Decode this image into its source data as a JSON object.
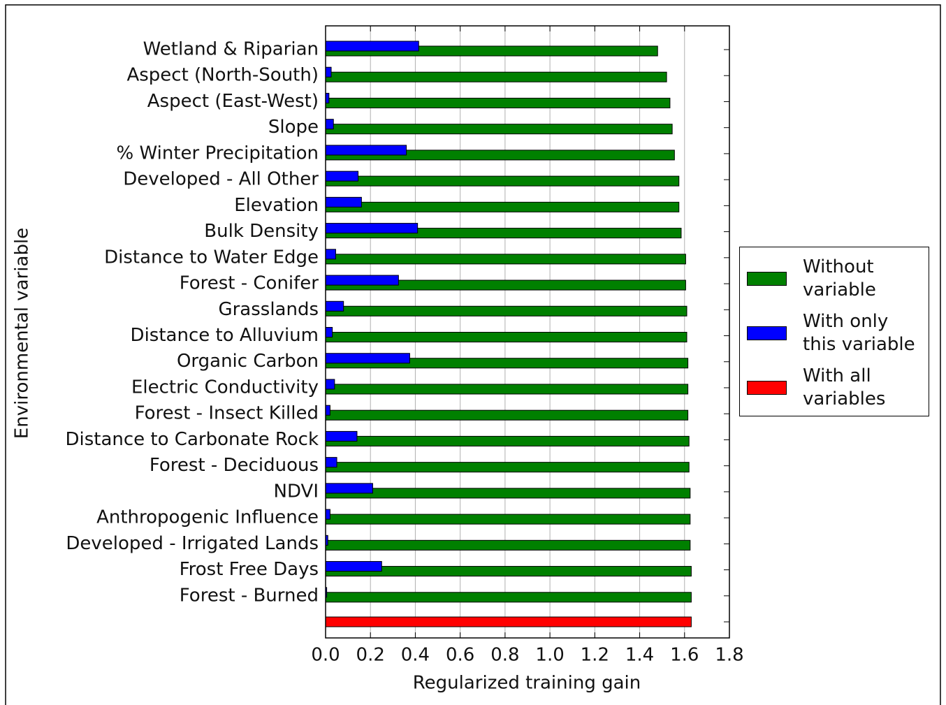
{
  "chart_data": {
    "type": "barh",
    "xlabel": "Regularized training gain",
    "ylabel": "Environmental variable",
    "categories": [
      "Wetland & Riparian",
      "Aspect (North-South)",
      "Aspect (East-West)",
      "Slope",
      "% Winter Precipitation",
      "Developed - All Other",
      "Elevation",
      "Bulk Density",
      "Distance to Water Edge",
      "Forest - Conifer",
      "Grasslands",
      "Distance to Alluvium",
      "Organic Carbon",
      "Electric Conductivity",
      "Forest - Insect Killed",
      "Distance to Carbonate Rock",
      "Forest - Deciduous",
      "NDVI",
      "Anthropogenic Influence",
      "Developed - Irrigated Lands",
      "Frost Free Days",
      "Forest - Burned",
      null
    ],
    "series": [
      {
        "name": "Without variable",
        "color": "#008000",
        "values": [
          1.48,
          1.52,
          1.535,
          1.545,
          1.555,
          1.575,
          1.575,
          1.585,
          1.605,
          1.605,
          1.61,
          1.61,
          1.615,
          1.615,
          1.615,
          1.62,
          1.62,
          1.625,
          1.625,
          1.625,
          1.63,
          1.63,
          null
        ]
      },
      {
        "name": "With only this variable",
        "color": "#0000ff",
        "values": [
          0.415,
          0.025,
          0.015,
          0.035,
          0.36,
          0.145,
          0.16,
          0.41,
          0.045,
          0.325,
          0.08,
          0.03,
          0.375,
          0.04,
          0.02,
          0.14,
          0.05,
          0.21,
          0.02,
          0.01,
          0.25,
          0.005,
          null
        ]
      },
      {
        "name": "With all variables",
        "color": "#ff0000",
        "values": [
          null,
          null,
          null,
          null,
          null,
          null,
          null,
          null,
          null,
          null,
          null,
          null,
          null,
          null,
          null,
          null,
          null,
          null,
          null,
          null,
          null,
          null,
          1.63
        ]
      }
    ],
    "xlim": [
      0,
      1.8
    ],
    "xticks": [
      {
        "value": 0,
        "label": "0.0"
      },
      0.2,
      0.4,
      0.6,
      0.8,
      {
        "value": 1,
        "label": "1.0"
      },
      1.2,
      1.4,
      1.6,
      1.8
    ],
    "grid": true,
    "legend": "outside-right"
  }
}
